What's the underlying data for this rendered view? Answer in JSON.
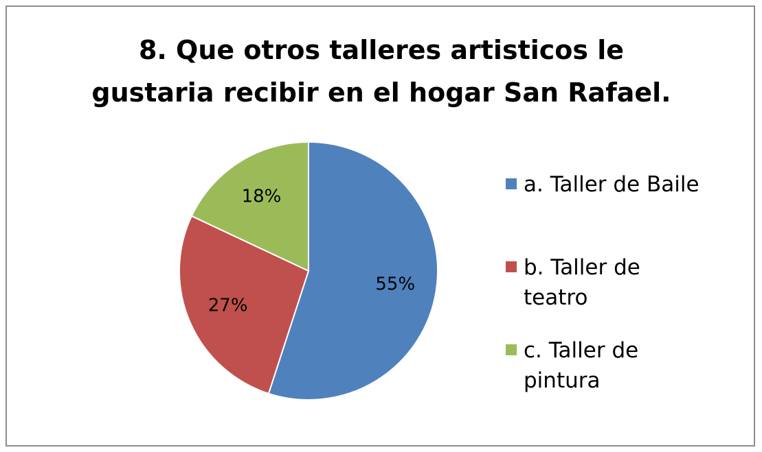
{
  "chart_data": {
    "type": "pie",
    "title": "8. Que otros talleres artisticos le gustaria recibir en el hogar San Rafael.",
    "categories": [
      "a. Taller de Baile",
      "b. Taller de teatro",
      "c. Taller de pintura"
    ],
    "values": [
      55,
      27,
      18
    ],
    "value_labels": [
      "55%",
      "27%",
      "18%"
    ],
    "colors": [
      "#4f81bd",
      "#c0504d",
      "#9bbb59"
    ],
    "legend": "right"
  }
}
